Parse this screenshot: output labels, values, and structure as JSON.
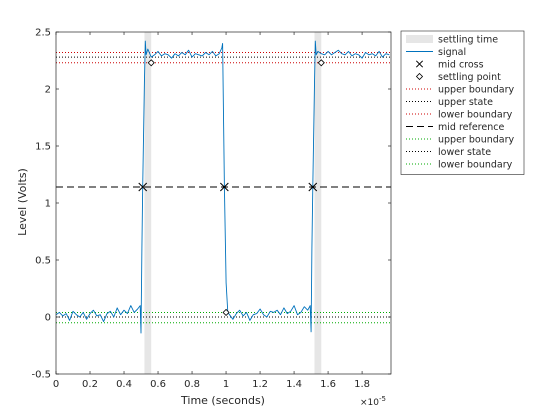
{
  "chart_data": {
    "type": "line",
    "title": "",
    "xlabel": "Time (seconds)",
    "ylabel": "Level (Volts)",
    "x_exponent_label": "×10",
    "x_exponent_power": "-5",
    "xlim": [
      0,
      1.97
    ],
    "ylim": [
      -0.5,
      2.5
    ],
    "xticks": [
      0,
      0.2,
      0.4,
      0.6,
      0.8,
      1,
      1.2,
      1.4,
      1.6,
      1.8
    ],
    "xtick_labels": [
      "0",
      "0.2",
      "0.4",
      "0.6",
      "0.8",
      "1",
      "1.2",
      "1.4",
      "1.6",
      "1.8"
    ],
    "yticks": [
      -0.5,
      0,
      0.5,
      1,
      1.5,
      2,
      2.5
    ],
    "ytick_labels": [
      "-0.5",
      "0",
      "0.5",
      "1",
      "1.5",
      "2",
      "2.5"
    ],
    "x_unit_note": "x values are in units of 1e-5 seconds",
    "grid": false,
    "legend_position": "top-right outside",
    "legend": [
      {
        "label": "settling time",
        "kind": "patch",
        "color": "#e6e6e6"
      },
      {
        "label": "signal",
        "kind": "line",
        "color": "#0072bd",
        "dash": "solid"
      },
      {
        "label": "mid cross",
        "kind": "marker",
        "marker": "x",
        "color": "#000000"
      },
      {
        "label": "settling point",
        "kind": "marker",
        "marker": "diamond",
        "color": "#000000"
      },
      {
        "label": "upper boundary",
        "kind": "line",
        "color": "#cc0000",
        "dash": "dotted"
      },
      {
        "label": "upper state",
        "kind": "line",
        "color": "#000000",
        "dash": "dotted"
      },
      {
        "label": "lower boundary",
        "kind": "line",
        "color": "#cc0000",
        "dash": "dotted"
      },
      {
        "label": "mid reference",
        "kind": "line",
        "color": "#000000",
        "dash": "dashed"
      },
      {
        "label": "upper boundary",
        "kind": "line",
        "color": "#00aa00",
        "dash": "dotted"
      },
      {
        "label": "lower state",
        "kind": "line",
        "color": "#000000",
        "dash": "dotted"
      },
      {
        "label": "lower boundary",
        "kind": "line",
        "color": "#00aa00",
        "dash": "dotted"
      }
    ],
    "reference_lines": {
      "high_upper_boundary": 2.32,
      "high_state": 2.28,
      "high_lower_boundary": 2.23,
      "mid_reference": 1.14,
      "low_upper_boundary": 0.04,
      "low_state": 0.0,
      "low_lower_boundary": -0.05
    },
    "settling_regions": [
      {
        "x_start": 0.52,
        "x_end": 0.56
      },
      {
        "x_start": 1.52,
        "x_end": 1.56
      }
    ],
    "mid_crosses": [
      {
        "x": 0.51,
        "y": 1.14
      },
      {
        "x": 0.99,
        "y": 1.14
      },
      {
        "x": 1.51,
        "y": 1.14
      }
    ],
    "settling_points": [
      {
        "x": 0.56,
        "y": 2.23
      },
      {
        "x": 1.0,
        "y": 0.04
      },
      {
        "x": 1.56,
        "y": 2.23
      }
    ],
    "series": [
      {
        "name": "signal",
        "color": "#0072bd",
        "x": [
          0,
          0.02,
          0.04,
          0.06,
          0.08,
          0.1,
          0.12,
          0.14,
          0.16,
          0.18,
          0.2,
          0.22,
          0.24,
          0.26,
          0.28,
          0.3,
          0.32,
          0.34,
          0.36,
          0.38,
          0.4,
          0.42,
          0.44,
          0.46,
          0.48,
          0.495,
          0.5,
          0.505,
          0.51,
          0.52,
          0.525,
          0.53,
          0.54,
          0.56,
          0.58,
          0.6,
          0.62,
          0.64,
          0.66,
          0.68,
          0.7,
          0.72,
          0.74,
          0.76,
          0.78,
          0.8,
          0.82,
          0.84,
          0.86,
          0.88,
          0.9,
          0.92,
          0.94,
          0.96,
          0.975,
          0.98,
          0.99,
          1.0,
          1.01,
          1.02,
          1.04,
          1.06,
          1.08,
          1.1,
          1.12,
          1.14,
          1.16,
          1.18,
          1.2,
          1.22,
          1.24,
          1.26,
          1.28,
          1.3,
          1.32,
          1.34,
          1.36,
          1.38,
          1.4,
          1.42,
          1.44,
          1.46,
          1.48,
          1.495,
          1.5,
          1.505,
          1.51,
          1.52,
          1.525,
          1.53,
          1.54,
          1.56,
          1.58,
          1.6,
          1.62,
          1.64,
          1.66,
          1.68,
          1.7,
          1.72,
          1.74,
          1.76,
          1.78,
          1.8,
          1.82,
          1.84,
          1.86,
          1.88,
          1.9,
          1.92,
          1.94,
          1.96
        ],
        "y": [
          0.02,
          0.04,
          0.01,
          0.03,
          -0.03,
          0.05,
          0.02,
          0.0,
          0.04,
          -0.02,
          0.03,
          0.06,
          0.01,
          0.02,
          -0.04,
          0.03,
          0.05,
          0.0,
          0.08,
          0.02,
          0.06,
          0.03,
          0.1,
          0.04,
          0.07,
          0.1,
          -0.14,
          0.6,
          1.14,
          2.05,
          2.42,
          2.3,
          2.35,
          2.28,
          2.3,
          2.33,
          2.29,
          2.31,
          2.3,
          2.27,
          2.31,
          2.29,
          2.32,
          2.3,
          2.34,
          2.28,
          2.31,
          2.3,
          2.29,
          2.32,
          2.3,
          2.33,
          2.29,
          2.31,
          2.36,
          2.4,
          1.14,
          0.3,
          0.04,
          0.02,
          -0.02,
          0.03,
          0.06,
          0.01,
          0.04,
          -0.03,
          0.02,
          0.03,
          0.07,
          0.02,
          0.0,
          0.05,
          0.04,
          0.06,
          0.02,
          0.08,
          0.03,
          0.05,
          0.1,
          0.02,
          0.04,
          0.09,
          0.06,
          0.1,
          -0.13,
          0.6,
          1.14,
          2.05,
          2.42,
          2.3,
          2.33,
          2.31,
          2.3,
          2.33,
          2.3,
          2.32,
          2.34,
          2.31,
          2.3,
          2.33,
          2.29,
          2.31,
          2.3,
          2.27,
          2.32,
          2.3,
          2.31,
          2.29,
          2.33,
          2.28,
          2.31,
          2.3
        ]
      }
    ]
  }
}
